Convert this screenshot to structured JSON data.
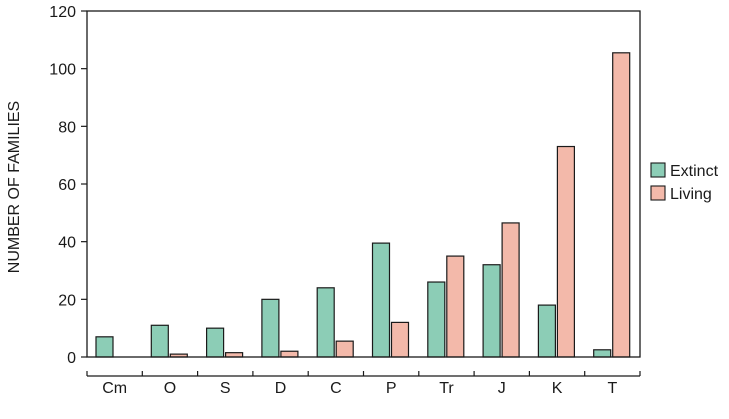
{
  "chart_data": {
    "type": "bar",
    "title": "",
    "xlabel": "",
    "ylabel": "NUMBER OF FAMILIES",
    "ylim": [
      0,
      120
    ],
    "yticks": [
      0,
      20,
      40,
      60,
      80,
      100,
      120
    ],
    "grid": false,
    "legend_position": "right",
    "categories": [
      "Cm",
      "O",
      "S",
      "D",
      "C",
      "P",
      "Tr",
      "J",
      "K",
      "T"
    ],
    "series": [
      {
        "name": "Extinct",
        "color": "#8ccdb6",
        "values": [
          7,
          11,
          10,
          20,
          24,
          39.5,
          26,
          32,
          18,
          2.5
        ]
      },
      {
        "name": "Living",
        "color": "#f3b9aa",
        "values": [
          0,
          1,
          1.5,
          2,
          5.5,
          12,
          35,
          46.5,
          73,
          105.5
        ]
      }
    ]
  }
}
